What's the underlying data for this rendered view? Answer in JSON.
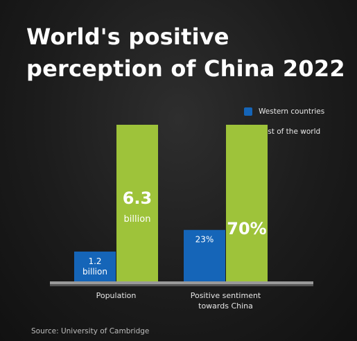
{
  "title_lines": [
    "World's positive",
    "perception of China 2022"
  ],
  "source": "Source: University of Cambridge",
  "colors": {
    "western": "#1565b8",
    "rest": "#9ec33a"
  },
  "chart_data": {
    "type": "bar",
    "title": "World's positive perception of China 2022",
    "categories": [
      "Population",
      "Positive sentiment towards China"
    ],
    "category_label_lines": [
      [
        "Population"
      ],
      [
        "Positive sentiment",
        "towards China"
      ]
    ],
    "series": [
      {
        "name": "Western countries",
        "values": [
          1.2,
          23
        ],
        "labels": [
          [
            "1.2",
            "billion"
          ],
          [
            "23%"
          ]
        ]
      },
      {
        "name": "Rest of the world",
        "values": [
          6.3,
          70
        ],
        "labels": [
          [
            "6.3",
            "billion"
          ],
          [
            "70%"
          ]
        ]
      }
    ]
  }
}
